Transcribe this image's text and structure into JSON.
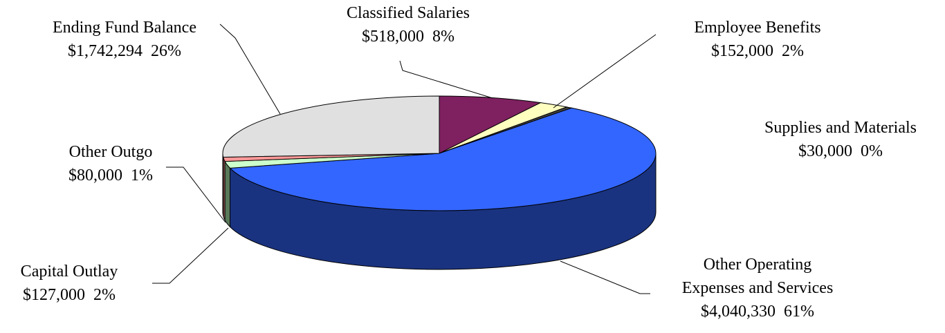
{
  "chart_data": {
    "type": "pie3d",
    "categories": [
      "Classified Salaries",
      "Employee Benefits",
      "Supplies and Materials",
      "Other Operating\nExpenses and Services",
      "Capital Outlay",
      "Other Outgo",
      "Ending Fund Balance"
    ],
    "values": [
      518000,
      152000,
      30000,
      4040330,
      127000,
      80000,
      1742294
    ],
    "value_labels": [
      "$518,000",
      "$152,000",
      "$30,000",
      "$4,040,330",
      "$127,000",
      "$80,000",
      "$1,742,294"
    ],
    "percent_labels": [
      "8%",
      "2%",
      "0%",
      "61%",
      "2%",
      "1%",
      "26%"
    ],
    "colors": [
      "#7f2060",
      "#ffffc0",
      "#404040",
      "#3366ff",
      "#ccffcc",
      "#ff9999",
      "#e0e0e0"
    ],
    "side_colors": [
      "#4c1339",
      "#a0a070",
      "#202020",
      "#1a3380",
      "#5a7a5a",
      "#a05858",
      "#909090"
    ]
  }
}
